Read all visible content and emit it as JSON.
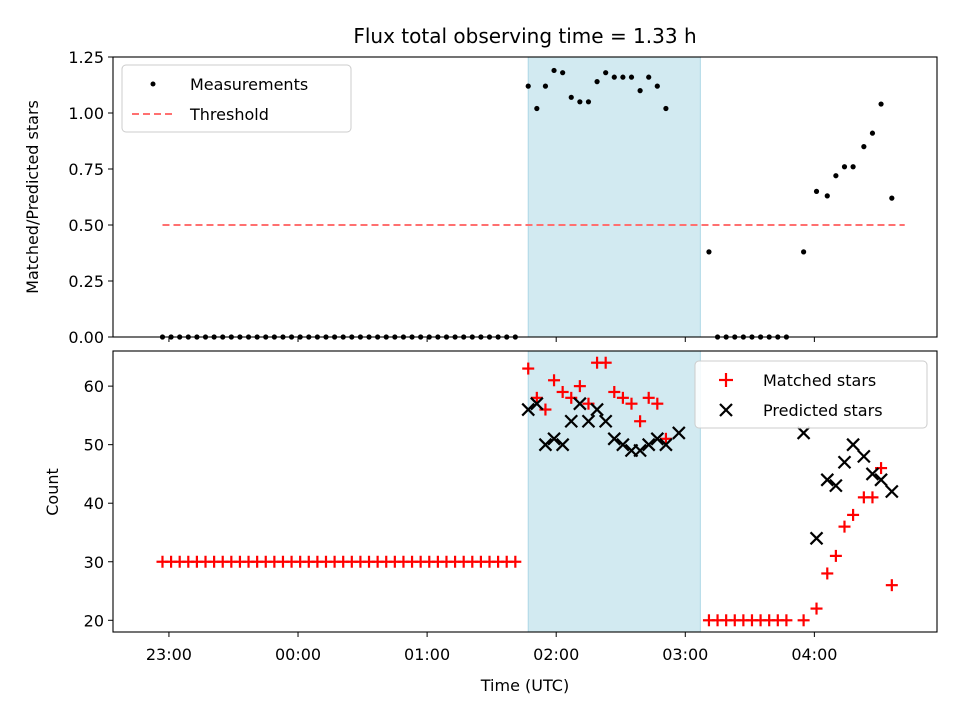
{
  "chart_data": [
    {
      "type": "scatter",
      "title": "Flux total observing time = 1.33 h",
      "xlabel": "",
      "ylabel": "Matched/Predicted stars",
      "ylim": [
        0,
        1.25
      ],
      "yticks": [
        "0.00",
        "0.25",
        "0.50",
        "0.75",
        "1.00",
        "1.25"
      ],
      "shaded_interval": {
        "from": "01:47",
        "to": "03:07",
        "color": "#add8e6"
      },
      "threshold": {
        "name": "Threshold",
        "y": 0.5,
        "from": "22:57",
        "to": "04:42",
        "color": "#ff7070",
        "style": "dashed"
      },
      "legend": {
        "position": "top-left",
        "entries": [
          "Measurements",
          "Threshold"
        ]
      },
      "series": [
        {
          "name": "Measurements",
          "marker": "dot",
          "color": "#000000",
          "points": [
            [
              "22:57",
              0
            ],
            [
              "23:01",
              0
            ],
            [
              "23:05",
              0
            ],
            [
              "23:09",
              0
            ],
            [
              "23:13",
              0
            ],
            [
              "23:17",
              0
            ],
            [
              "23:21",
              0
            ],
            [
              "23:25",
              0
            ],
            [
              "23:29",
              0
            ],
            [
              "23:33",
              0
            ],
            [
              "23:37",
              0
            ],
            [
              "23:41",
              0
            ],
            [
              "23:45",
              0
            ],
            [
              "23:49",
              0
            ],
            [
              "23:53",
              0
            ],
            [
              "23:57",
              0
            ],
            [
              "00:01",
              0
            ],
            [
              "00:05",
              0
            ],
            [
              "00:09",
              0
            ],
            [
              "00:13",
              0
            ],
            [
              "00:17",
              0
            ],
            [
              "00:21",
              0
            ],
            [
              "00:25",
              0
            ],
            [
              "00:29",
              0
            ],
            [
              "00:33",
              0
            ],
            [
              "00:37",
              0
            ],
            [
              "00:41",
              0
            ],
            [
              "00:45",
              0
            ],
            [
              "00:49",
              0
            ],
            [
              "00:53",
              0
            ],
            [
              "00:57",
              0
            ],
            [
              "01:01",
              0
            ],
            [
              "01:05",
              0
            ],
            [
              "01:09",
              0
            ],
            [
              "01:13",
              0
            ],
            [
              "01:17",
              0
            ],
            [
              "01:21",
              0
            ],
            [
              "01:25",
              0
            ],
            [
              "01:29",
              0
            ],
            [
              "01:33",
              0
            ],
            [
              "01:37",
              0
            ],
            [
              "01:41",
              0
            ],
            [
              "01:47",
              1.12
            ],
            [
              "01:51",
              1.02
            ],
            [
              "01:55",
              1.12
            ],
            [
              "01:59",
              1.19
            ],
            [
              "02:03",
              1.18
            ],
            [
              "02:07",
              1.07
            ],
            [
              "02:11",
              1.05
            ],
            [
              "02:15",
              1.05
            ],
            [
              "02:19",
              1.14
            ],
            [
              "02:23",
              1.18
            ],
            [
              "02:27",
              1.16
            ],
            [
              "02:31",
              1.16
            ],
            [
              "02:35",
              1.16
            ],
            [
              "02:39",
              1.1
            ],
            [
              "02:43",
              1.16
            ],
            [
              "02:47",
              1.12
            ],
            [
              "02:51",
              1.02
            ],
            [
              "03:11",
              0.38
            ],
            [
              "03:15",
              0
            ],
            [
              "03:19",
              0
            ],
            [
              "03:23",
              0
            ],
            [
              "03:27",
              0
            ],
            [
              "03:31",
              0
            ],
            [
              "03:35",
              0
            ],
            [
              "03:39",
              0
            ],
            [
              "03:43",
              0
            ],
            [
              "03:47",
              0
            ],
            [
              "03:55",
              0.38
            ],
            [
              "04:01",
              0.65
            ],
            [
              "04:06",
              0.63
            ],
            [
              "04:10",
              0.72
            ],
            [
              "04:14",
              0.76
            ],
            [
              "04:18",
              0.76
            ],
            [
              "04:23",
              0.85
            ],
            [
              "04:27",
              0.91
            ],
            [
              "04:31",
              1.04
            ],
            [
              "04:36",
              0.62
            ]
          ]
        }
      ],
      "xticks": [
        "23:00",
        "00:00",
        "01:00",
        "02:00",
        "03:00",
        "04:00"
      ]
    },
    {
      "type": "scatter",
      "title": "",
      "xlabel": "Time (UTC)",
      "ylabel": "Count",
      "ylim": [
        18,
        66
      ],
      "yticks": [
        "20",
        "30",
        "40",
        "50",
        "60"
      ],
      "xticks": [
        "23:00",
        "00:00",
        "01:00",
        "02:00",
        "03:00",
        "04:00"
      ],
      "shaded_interval": {
        "from": "01:47",
        "to": "03:07",
        "color": "#add8e6"
      },
      "legend": {
        "position": "top-right",
        "entries": [
          "Matched stars",
          "Predicted stars"
        ]
      },
      "series": [
        {
          "name": "Matched stars",
          "marker": "plus",
          "color": "#ff0000",
          "points": [
            [
              "22:57",
              30
            ],
            [
              "23:01",
              30
            ],
            [
              "23:05",
              30
            ],
            [
              "23:09",
              30
            ],
            [
              "23:13",
              30
            ],
            [
              "23:17",
              30
            ],
            [
              "23:21",
              30
            ],
            [
              "23:25",
              30
            ],
            [
              "23:29",
              30
            ],
            [
              "23:33",
              30
            ],
            [
              "23:37",
              30
            ],
            [
              "23:41",
              30
            ],
            [
              "23:45",
              30
            ],
            [
              "23:49",
              30
            ],
            [
              "23:53",
              30
            ],
            [
              "23:57",
              30
            ],
            [
              "00:01",
              30
            ],
            [
              "00:05",
              30
            ],
            [
              "00:09",
              30
            ],
            [
              "00:13",
              30
            ],
            [
              "00:17",
              30
            ],
            [
              "00:21",
              30
            ],
            [
              "00:25",
              30
            ],
            [
              "00:29",
              30
            ],
            [
              "00:33",
              30
            ],
            [
              "00:37",
              30
            ],
            [
              "00:41",
              30
            ],
            [
              "00:45",
              30
            ],
            [
              "00:49",
              30
            ],
            [
              "00:53",
              30
            ],
            [
              "00:57",
              30
            ],
            [
              "01:01",
              30
            ],
            [
              "01:05",
              30
            ],
            [
              "01:09",
              30
            ],
            [
              "01:13",
              30
            ],
            [
              "01:17",
              30
            ],
            [
              "01:21",
              30
            ],
            [
              "01:25",
              30
            ],
            [
              "01:29",
              30
            ],
            [
              "01:33",
              30
            ],
            [
              "01:37",
              30
            ],
            [
              "01:41",
              30
            ],
            [
              "01:47",
              63
            ],
            [
              "01:51",
              58
            ],
            [
              "01:55",
              56
            ],
            [
              "01:59",
              61
            ],
            [
              "02:03",
              59
            ],
            [
              "02:07",
              58
            ],
            [
              "02:11",
              60
            ],
            [
              "02:15",
              57
            ],
            [
              "02:19",
              64
            ],
            [
              "02:23",
              64
            ],
            [
              "02:27",
              59
            ],
            [
              "02:31",
              58
            ],
            [
              "02:35",
              57
            ],
            [
              "02:39",
              54
            ],
            [
              "02:43",
              58
            ],
            [
              "02:47",
              57
            ],
            [
              "02:51",
              51
            ],
            [
              "03:11",
              20
            ],
            [
              "03:15",
              20
            ],
            [
              "03:19",
              20
            ],
            [
              "03:23",
              20
            ],
            [
              "03:27",
              20
            ],
            [
              "03:31",
              20
            ],
            [
              "03:35",
              20
            ],
            [
              "03:39",
              20
            ],
            [
              "03:43",
              20
            ],
            [
              "03:47",
              20
            ],
            [
              "03:55",
              20
            ],
            [
              "04:01",
              22
            ],
            [
              "04:06",
              28
            ],
            [
              "04:10",
              31
            ],
            [
              "04:14",
              36
            ],
            [
              "04:18",
              38
            ],
            [
              "04:23",
              41
            ],
            [
              "04:27",
              41
            ],
            [
              "04:31",
              46
            ],
            [
              "04:36",
              26
            ]
          ]
        },
        {
          "name": "Predicted stars",
          "marker": "x",
          "color": "#000000",
          "points": [
            [
              "01:47",
              56
            ],
            [
              "01:51",
              57
            ],
            [
              "01:55",
              50
            ],
            [
              "01:59",
              51
            ],
            [
              "02:03",
              50
            ],
            [
              "02:07",
              54
            ],
            [
              "02:11",
              57
            ],
            [
              "02:15",
              54
            ],
            [
              "02:19",
              56
            ],
            [
              "02:23",
              54
            ],
            [
              "02:27",
              51
            ],
            [
              "02:31",
              50
            ],
            [
              "02:35",
              49
            ],
            [
              "02:39",
              49
            ],
            [
              "02:43",
              50
            ],
            [
              "02:47",
              51
            ],
            [
              "02:51",
              50
            ],
            [
              "02:57",
              52
            ],
            [
              "03:55",
              52
            ],
            [
              "04:01",
              34
            ],
            [
              "04:06",
              44
            ],
            [
              "04:10",
              43
            ],
            [
              "04:14",
              47
            ],
            [
              "04:18",
              50
            ],
            [
              "04:23",
              48
            ],
            [
              "04:27",
              45
            ],
            [
              "04:31",
              44
            ],
            [
              "04:36",
              42
            ]
          ]
        }
      ]
    }
  ]
}
